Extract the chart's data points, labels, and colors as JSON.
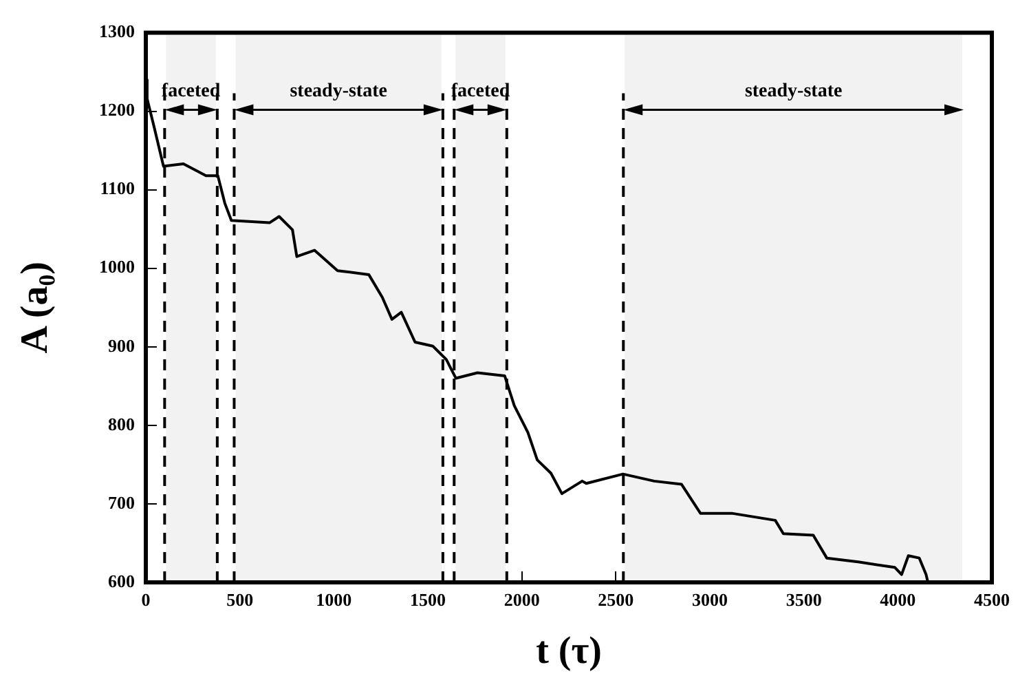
{
  "chart_data": {
    "type": "line",
    "xlabel": "t (τ)",
    "ylabel": "A (a₀)",
    "x": [
      0,
      7,
      43,
      94,
      200,
      320,
      383,
      420,
      455,
      658,
      709,
      780,
      803,
      897,
      1020,
      1186,
      1258,
      1309,
      1359,
      1432,
      1526,
      1598,
      1649,
      1764,
      1909,
      1960,
      2032,
      2082,
      2155,
      2213,
      2321,
      2343,
      2538,
      2704,
      2849,
      2950,
      3116,
      3348,
      3391,
      3550,
      3622,
      3789,
      3984,
      4020,
      4056,
      4114,
      4150,
      4160
    ],
    "series": [
      {
        "color": "#000000",
        "values": [
          1240,
          1216,
          1181,
          1130,
          1133,
          1118,
          1118,
          1083,
          1061,
          1058,
          1066,
          1049,
          1015,
          1023,
          997,
          992,
          963,
          935,
          944,
          906,
          901,
          884,
          860,
          867,
          863,
          825,
          791,
          756,
          739,
          713,
          729,
          726,
          738,
          729,
          725,
          688,
          688,
          679,
          662,
          660,
          631,
          626,
          619,
          610,
          634,
          631,
          610,
          600
        ]
      }
    ],
    "xlim": [
      0,
      4500
    ],
    "xticks": [
      0,
      500,
      1000,
      1500,
      2000,
      2500,
      3000,
      3500,
      4000,
      4500
    ],
    "ylim": [
      600,
      1300
    ],
    "yticks": [
      600,
      700,
      800,
      900,
      1000,
      1100,
      1200,
      1300
    ],
    "grid": false,
    "legend": false,
    "marker": "none",
    "line_style": "solid",
    "ref_lines": [
      {
        "axis": "x",
        "value": 100,
        "line_style": "dashed"
      },
      {
        "axis": "x",
        "value": 380,
        "line_style": "dashed"
      },
      {
        "axis": "x",
        "value": 470,
        "line_style": "dashed"
      },
      {
        "axis": "x",
        "value": 1580,
        "line_style": "dashed"
      },
      {
        "axis": "x",
        "value": 1640,
        "line_style": "dashed"
      },
      {
        "axis": "x",
        "value": 1920,
        "line_style": "dashed"
      },
      {
        "axis": "x",
        "value": 2540,
        "line_style": "dashed"
      }
    ],
    "bands": [
      {
        "axis": "x",
        "from": 100,
        "to": 380,
        "label": "faceted"
      },
      {
        "axis": "x",
        "from": 470,
        "to": 1580,
        "label": "steady-state"
      },
      {
        "axis": "x",
        "from": 1640,
        "to": 1920,
        "label": "faceted"
      },
      {
        "axis": "x",
        "from": 2540,
        "to": 4350,
        "label": "steady-state"
      }
    ]
  }
}
